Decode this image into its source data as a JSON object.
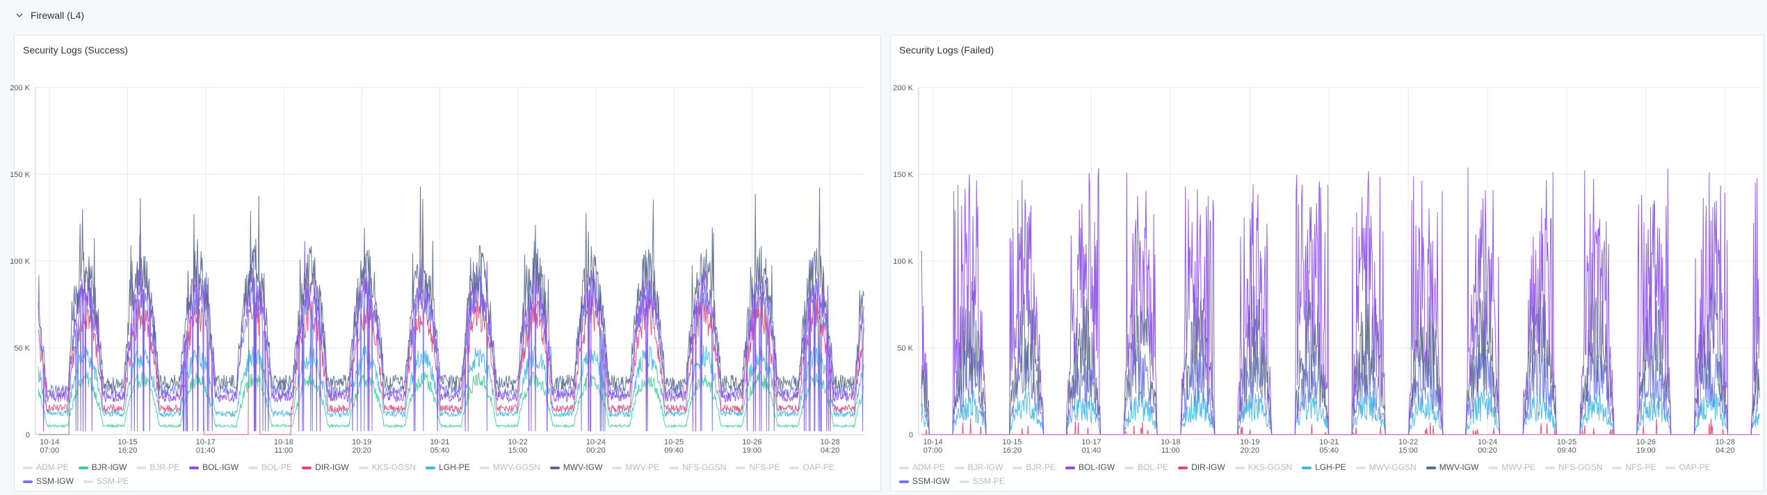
{
  "section": {
    "title": "Firewall (L4)",
    "icon": "chevron-down-icon"
  },
  "legend_order": [
    "ADM-PE",
    "BJR-IGW",
    "BJR-PE",
    "BOL-IGW",
    "BOL-PE",
    "DIR-IGW",
    "KKS-GGSN",
    "LGH-PE",
    "MWV-GGSN",
    "MWV-IGW",
    "MWV-PE",
    "NFS-GGSN",
    "NFS-PE",
    "OAP-PE",
    "SSM-IGW",
    "SSM-PE"
  ],
  "colors": {
    "ADM-PE": "#cfd3d8",
    "BJR-IGW": "#3fcf9c",
    "BJR-PE": "#cfd3d8",
    "BOL-IGW": "#8a4fe8",
    "BOL-PE": "#cfd3d8",
    "DIR-IGW": "#e0457b",
    "KKS-GGSN": "#cfd3d8",
    "LGH-PE": "#3fb8e6",
    "MWV-GGSN": "#cfd3d8",
    "MWV-IGW": "#5b6b8c",
    "MWV-PE": "#cfd3d8",
    "NFS-GGSN": "#cfd3d8",
    "NFS-PE": "#cfd3d8",
    "OAP-PE": "#cfd3d8",
    "SSM-IGW": "#7079e6",
    "SSM-PE": "#cfd3d8"
  },
  "chart_data": [
    {
      "type": "line",
      "title": "Security Logs (Success)",
      "ylim": [
        0,
        200000
      ],
      "y_ticks": [
        "0",
        "50 K",
        "100 K",
        "150 K",
        "200 K"
      ],
      "x_ticks": [
        [
          "10-14",
          "07:00"
        ],
        [
          "10-15",
          "16:20"
        ],
        [
          "10-17",
          "01:40"
        ],
        [
          "10-18",
          "11:00"
        ],
        [
          "10-19",
          "20:20"
        ],
        [
          "10-21",
          "05:40"
        ],
        [
          "10-22",
          "15:00"
        ],
        [
          "10-24",
          "00:20"
        ],
        [
          "10-25",
          "09:40"
        ],
        [
          "10-26",
          "19:00"
        ],
        [
          "10-28",
          "04:20"
        ]
      ],
      "x_tick_days": [
        0.0,
        1.3889,
        2.7778,
        4.1667,
        5.5556,
        6.9444,
        8.3333,
        9.7222,
        11.1111,
        12.5,
        13.8889
      ],
      "x_range_days": [
        -0.25,
        14.5
      ],
      "grid": true,
      "legend": "bottom",
      "series": [
        {
          "name": "ADM-PE",
          "visible": false,
          "values": []
        },
        {
          "name": "BJR-IGW",
          "visible": true,
          "night": 5000,
          "day": 32000
        },
        {
          "name": "BJR-PE",
          "visible": false,
          "values": []
        },
        {
          "name": "BOL-IGW",
          "visible": true,
          "night": 22000,
          "day": 85000
        },
        {
          "name": "BOL-PE",
          "visible": false,
          "values": []
        },
        {
          "name": "DIR-IGW",
          "visible": true,
          "night": 15000,
          "day": 70000
        },
        {
          "name": "KKS-GGSN",
          "visible": false,
          "values": []
        },
        {
          "name": "LGH-PE",
          "visible": true,
          "night": 12000,
          "day": 45000
        },
        {
          "name": "MWV-GGSN",
          "visible": false,
          "values": []
        },
        {
          "name": "MWV-IGW",
          "visible": true,
          "night": 30000,
          "day": 95000
        },
        {
          "name": "MWV-PE",
          "visible": false,
          "values": []
        },
        {
          "name": "NFS-GGSN",
          "visible": false,
          "values": []
        },
        {
          "name": "NFS-PE",
          "visible": false,
          "values": []
        },
        {
          "name": "OAP-PE",
          "visible": false,
          "values": []
        },
        {
          "name": "SSM-IGW",
          "visible": true,
          "night": 25000,
          "day": 80000
        },
        {
          "name": "SSM-PE",
          "visible": false,
          "values": []
        }
      ]
    },
    {
      "type": "line",
      "title": "Security Logs (Failed)",
      "ylim": [
        0,
        200000
      ],
      "y_ticks": [
        "0",
        "50 K",
        "100 K",
        "150 K",
        "200 K"
      ],
      "x_ticks": [
        [
          "10-14",
          "07:00"
        ],
        [
          "10-15",
          "16:20"
        ],
        [
          "10-17",
          "01:40"
        ],
        [
          "10-18",
          "11:00"
        ],
        [
          "10-19",
          "20:20"
        ],
        [
          "10-21",
          "05:40"
        ],
        [
          "10-22",
          "15:00"
        ],
        [
          "10-24",
          "00:20"
        ],
        [
          "10-25",
          "09:40"
        ],
        [
          "10-26",
          "19:00"
        ],
        [
          "10-28",
          "04:20"
        ]
      ],
      "x_tick_days": [
        0.0,
        1.3889,
        2.7778,
        4.1667,
        5.5556,
        6.9444,
        8.3333,
        9.7222,
        11.1111,
        12.5,
        13.8889
      ],
      "x_range_days": [
        -0.25,
        14.5
      ],
      "grid": true,
      "legend": "bottom",
      "series": [
        {
          "name": "ADM-PE",
          "visible": false,
          "values": []
        },
        {
          "name": "BJR-IGW",
          "visible": false,
          "values": []
        },
        {
          "name": "BJR-PE",
          "visible": false,
          "values": []
        },
        {
          "name": "BOL-IGW",
          "visible": true,
          "night": 0,
          "day": 110000
        },
        {
          "name": "BOL-PE",
          "visible": false,
          "values": []
        },
        {
          "name": "DIR-IGW",
          "visible": true,
          "night": 0,
          "day": 8000
        },
        {
          "name": "KKS-GGSN",
          "visible": false,
          "values": []
        },
        {
          "name": "LGH-PE",
          "visible": true,
          "night": 0,
          "day": 22000
        },
        {
          "name": "MWV-GGSN",
          "visible": false,
          "values": []
        },
        {
          "name": "MWV-IGW",
          "visible": true,
          "night": 0,
          "day": 70000
        },
        {
          "name": "MWV-PE",
          "visible": false,
          "values": []
        },
        {
          "name": "NFS-GGSN",
          "visible": false,
          "values": []
        },
        {
          "name": "NFS-PE",
          "visible": false,
          "values": []
        },
        {
          "name": "OAP-PE",
          "visible": false,
          "values": []
        },
        {
          "name": "SSM-IGW",
          "visible": true,
          "night": 0,
          "day": 45000
        },
        {
          "name": "SSM-PE",
          "visible": false,
          "values": []
        }
      ]
    }
  ]
}
